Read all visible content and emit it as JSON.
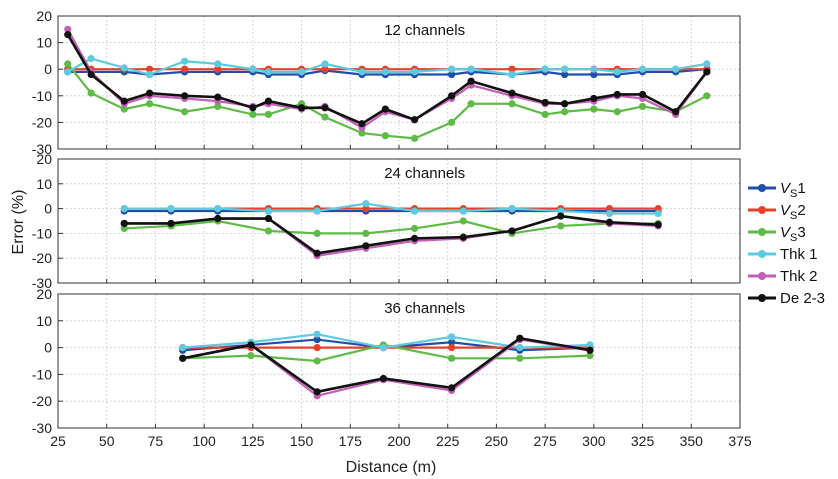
{
  "chart_data": {
    "type": "line",
    "xlabel": "Distance (m)",
    "ylabel": "Error (%)",
    "xlim": [
      25,
      375
    ],
    "xticks": [
      25,
      50,
      75,
      100,
      125,
      150,
      175,
      200,
      225,
      250,
      275,
      300,
      325,
      350,
      375
    ],
    "ylim": [
      -30,
      20
    ],
    "yticks": [
      -30,
      -20,
      -10,
      0,
      10,
      20
    ],
    "grid": true,
    "legend_position": "right",
    "legend": [
      {
        "base": "V",
        "sub": "S",
        "suffix": "1",
        "italic": true,
        "color": "#1f4fa8"
      },
      {
        "base": "V",
        "sub": "S",
        "suffix": "2",
        "italic": true,
        "color": "#e8402a"
      },
      {
        "base": "V",
        "sub": "S",
        "suffix": "3",
        "italic": true,
        "color": "#5dbb46"
      },
      {
        "base": "Thk 1",
        "sub": "",
        "suffix": "",
        "italic": false,
        "color": "#5ccbe0"
      },
      {
        "base": "Thk 2",
        "sub": "",
        "suffix": "",
        "italic": false,
        "color": "#c45fb8"
      },
      {
        "base": "De 2-3",
        "sub": "",
        "suffix": "",
        "italic": false,
        "color": "#111111"
      }
    ],
    "panels": [
      {
        "title": "12 channels",
        "x": [
          30,
          42,
          59,
          72,
          90,
          107,
          125,
          133,
          150,
          162,
          181,
          193,
          208,
          227,
          237,
          258,
          275,
          285,
          300,
          312,
          325,
          342,
          358
        ],
        "series": [
          {
            "name": "VS1",
            "values": [
              -1,
              -1,
              -1,
              -2,
              -1,
              -1,
              -1,
              -2,
              -2,
              -0.5,
              -2,
              -2,
              -2,
              -2,
              -1,
              -2,
              -1,
              -2,
              -2,
              -2,
              -1,
              -1,
              0
            ]
          },
          {
            "name": "VS2",
            "values": [
              0,
              0,
              0,
              0,
              0,
              0,
              0,
              0,
              0,
              0,
              0,
              0,
              0,
              0,
              0,
              0,
              0,
              0,
              0,
              0,
              0,
              0,
              0
            ]
          },
          {
            "name": "VS3",
            "values": [
              2,
              -9,
              -15,
              -13,
              -16,
              -14,
              -17,
              -17,
              -13,
              -18,
              -24,
              -25,
              -26,
              -20,
              -13,
              -13,
              -17,
              -16,
              -15,
              -16,
              -14,
              -16,
              -10
            ]
          },
          {
            "name": "Thk 1",
            "values": [
              -1,
              4,
              0.5,
              -2,
              3,
              2,
              0,
              -1,
              -1,
              2,
              -1,
              -1,
              -1,
              0,
              0,
              -2,
              0,
              0,
              0,
              -1,
              0,
              0,
              2
            ]
          },
          {
            "name": "Thk 2",
            "values": [
              15,
              -1,
              -13,
              -10,
              -11,
              -12,
              -14,
              -13,
              -15,
              -14,
              -22,
              -16,
              -19,
              -11,
              -6,
              -10,
              -13,
              -13,
              -12,
              -10,
              -11,
              -17,
              -1
            ]
          },
          {
            "name": "De 2-3",
            "values": [
              13,
              -2,
              -12,
              -9,
              -10,
              -10.5,
              -14.5,
              -12,
              -14.5,
              -14.5,
              -20.5,
              -15,
              -19,
              -10,
              -4.5,
              -9,
              -12.5,
              -13,
              -11,
              -9.5,
              -9.5,
              -16,
              -1
            ]
          }
        ]
      },
      {
        "title": "24 channels",
        "x": [
          59,
          83,
          107,
          133,
          158,
          183,
          208,
          233,
          258,
          283,
          308,
          333
        ],
        "series": [
          {
            "name": "VS1",
            "values": [
              -1,
              -1,
              -1,
              -1,
              -1,
              -1,
              -1,
              -1,
              -1,
              -1,
              -1,
              -1
            ]
          },
          {
            "name": "VS2",
            "values": [
              0,
              0,
              0,
              0,
              0,
              0,
              0,
              0,
              0,
              0,
              0,
              0
            ]
          },
          {
            "name": "VS3",
            "values": [
              -8,
              -7,
              -5,
              -9,
              -10,
              -10,
              -8,
              -5,
              -10,
              -7,
              -6,
              -6
            ]
          },
          {
            "name": "Thk 1",
            "values": [
              0,
              0,
              0,
              -1,
              -1,
              2,
              -1,
              -1,
              0,
              -1,
              -2,
              -2
            ]
          },
          {
            "name": "Thk 2",
            "values": [
              -6,
              -6,
              -4,
              -4,
              -19,
              -16,
              -13,
              -12,
              -9,
              -3,
              -6,
              -7
            ]
          },
          {
            "name": "De 2-3",
            "values": [
              -6,
              -6,
              -4,
              -4,
              -18,
              -15,
              -12,
              -11.5,
              -9,
              -3,
              -5.5,
              -6.5
            ]
          }
        ]
      },
      {
        "title": "36 channels",
        "x": [
          89,
          124,
          158,
          192,
          227,
          262,
          298
        ],
        "series": [
          {
            "name": "VS1",
            "values": [
              -1,
              1,
              3,
              0,
              2,
              -1,
              0
            ]
          },
          {
            "name": "VS2",
            "values": [
              0,
              0,
              0,
              0,
              0,
              0,
              0
            ]
          },
          {
            "name": "VS3",
            "values": [
              -4,
              -3,
              -5,
              1,
              -4,
              -4,
              -3
            ]
          },
          {
            "name": "Thk 1",
            "values": [
              0,
              2,
              5,
              0,
              4,
              0,
              1
            ]
          },
          {
            "name": "Thk 2",
            "values": [
              -4,
              1,
              -18,
              -12,
              -16,
              3,
              -1
            ]
          },
          {
            "name": "De 2-3",
            "values": [
              -4,
              1,
              -16.5,
              -11.5,
              -15,
              3.5,
              -1
            ]
          }
        ]
      }
    ]
  }
}
